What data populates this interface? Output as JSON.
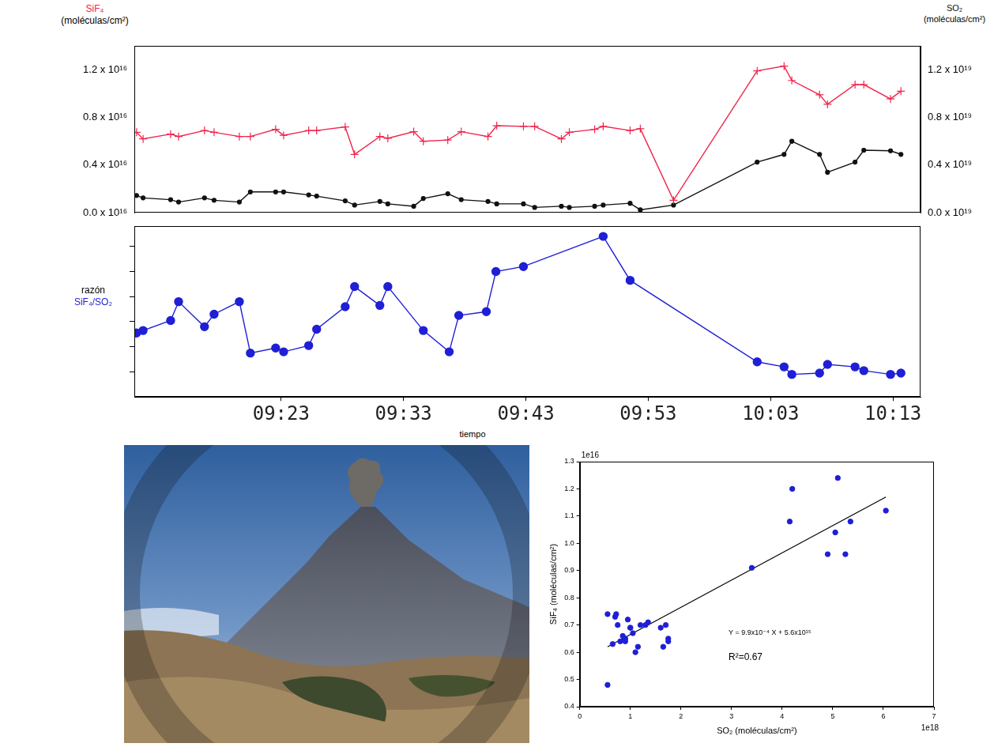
{
  "chart_data": [
    {
      "type": "line",
      "y_label": "(moléculas/cm²)",
      "y2_label": "(moléculas/cm²)",
      "x": [
        "09:11:11",
        "09:11:43",
        "09:13:58",
        "09:14:37",
        "09:16:44",
        "09:17:31",
        "09:19:35",
        "09:20:29",
        "09:22:33",
        "09:23:12",
        "09:25:15",
        "09:25:54",
        "09:28:14",
        "09:29:00",
        "09:31:04",
        "09:31:43",
        "09:33:50",
        "09:34:37",
        "09:36:37",
        "09:37:43",
        "09:39:54",
        "09:40:37",
        "09:42:48",
        "09:43:43",
        "09:45:54",
        "09:46:33",
        "09:48:37",
        "09:49:19",
        "09:51:31",
        "09:52:21",
        "09:55:04",
        "10:01:54",
        "10:04:06",
        "10:04:44",
        "10:07:00",
        "10:07:39",
        "10:09:54",
        "10:10:37",
        "10:12:48",
        "10:13:39"
      ],
      "xlim": [
        "09:11:00",
        "10:15:15"
      ],
      "ylim": [
        0,
        1.4e+16
      ],
      "yticks": [
        {
          "value": 0,
          "label": "0.0 x 10¹⁶"
        },
        {
          "value": 4000000000000000.0,
          "label": "0.4 x 10¹⁶"
        },
        {
          "value": 8000000000000000.0,
          "label": "0.8 x 10¹⁶"
        },
        {
          "value": 1.2e+16,
          "label": "1.2 x 10¹⁶"
        }
      ],
      "y2lim": [
        0,
        1.4e+19
      ],
      "y2ticks": [
        {
          "value": 0,
          "label": "0.0 x 10¹⁹"
        },
        {
          "value": 4e+18,
          "label": "0.4 x 10¹⁹"
        },
        {
          "value": 8e+18,
          "label": "0.8 x 10¹⁹"
        },
        {
          "value": 1.2e+19,
          "label": "1.2 x 10¹⁹"
        }
      ],
      "grid": false,
      "series": [
        {
          "name": "SiF₄",
          "color": "#f0244c",
          "marker": "plus",
          "values": [
            6750000000000000.0,
            6200000000000000.0,
            6600000000000000.0,
            6400000000000000.0,
            6900000000000000.0,
            6750000000000000.0,
            6400000000000000.0,
            6400000000000000.0,
            7000000000000000.0,
            6500000000000000.0,
            6900000000000000.0,
            6900000000000000.0,
            7200000000000000.0,
            4900000000000000.0,
            6400000000000000.0,
            6250000000000000.0,
            6800000000000000.0,
            6000000000000000.0,
            6100000000000000.0,
            6800000000000000.0,
            6400000000000000.0,
            7300000000000000.0,
            7250000000000000.0,
            7250000000000000.0,
            6200000000000000.0,
            6750000000000000.0,
            7000000000000000.0,
            7250000000000000.0,
            6900000000000000.0,
            7050000000000000.0,
            1050000000000000.0,
            1.19e+16,
            1.23e+16,
            1.11e+16,
            9900000000000000.0,
            9100000000000000.0,
            1.075e+16,
            1.075e+16,
            9550000000000000.0,
            1.02e+16
          ]
        },
        {
          "name": "SO₂",
          "color": "#111111",
          "marker": "circle",
          "axis": "y2",
          "values": [
            1.45e+18,
            1.25e+18,
            1.1e+18,
            9e+17,
            1.25e+18,
            1.05e+18,
            9e+17,
            1.75e+18,
            1.75e+18,
            1.75e+18,
            1.5e+18,
            1.4e+18,
            1e+18,
            6.5e+17,
            9.5e+17,
            7.5e+17,
            5.5e+17,
            1.2e+18,
            1.6e+18,
            1.1e+18,
            9.5e+17,
            7.5e+17,
            7.5e+17,
            4.5e+17,
            5.5e+17,
            4.5e+17,
            5.5e+17,
            6.5e+17,
            8e+17,
            2.5e+17,
            6.5e+17,
            4.25e+18,
            4.9e+18,
            6e+18,
            4.9e+18,
            3.4e+18,
            4.25e+18,
            5.25e+18,
            5.2e+18,
            4.9e+18
          ]
        }
      ]
    },
    {
      "type": "line",
      "x_label": "tiempo",
      "y_label": "razón",
      "x": [
        "09:11:11",
        "09:11:43",
        "09:13:58",
        "09:14:37",
        "09:16:44",
        "09:17:31",
        "09:19:35",
        "09:20:29",
        "09:22:33",
        "09:23:12",
        "09:25:15",
        "09:25:54",
        "09:28:14",
        "09:29:00",
        "09:31:04",
        "09:31:43",
        "09:34:37",
        "09:36:44",
        "09:37:31",
        "09:39:46",
        "09:40:33",
        "09:42:48",
        "09:49:19",
        "09:51:31",
        "10:01:54",
        "10:04:06",
        "10:04:44",
        "10:07:00",
        "10:07:39",
        "10:09:54",
        "10:10:37",
        "10:12:48",
        "10:13:39"
      ],
      "xlim": [
        "09:11:00",
        "10:15:15"
      ],
      "xticks": [
        "09:23",
        "09:33",
        "09:43",
        "09:53",
        "10:03",
        "10:13"
      ],
      "ylim": [
        0,
        0.0136
      ],
      "yticks": [
        0.002,
        0.004,
        0.006,
        0.008,
        0.01,
        0.012
      ],
      "tick_labels": "x",
      "grid": false,
      "series": [
        {
          "name": "SiF₄/SO₂",
          "color": "#1f1fd6",
          "marker": "circle",
          "values": [
            0.0051,
            0.0053,
            0.0061,
            0.0076,
            0.0056,
            0.0066,
            0.0076,
            0.0035,
            0.0039,
            0.0036,
            0.0041,
            0.0054,
            0.0072,
            0.0088,
            0.0073,
            0.0088,
            0.0053,
            0.0036,
            0.0065,
            0.0068,
            0.01,
            0.0104,
            0.0128,
            0.0093,
            0.0028,
            0.0024,
            0.0018,
            0.0019,
            0.0026,
            0.0024,
            0.0021,
            0.0018,
            0.0019
          ]
        }
      ]
    },
    {
      "type": "scatter",
      "x_label": "SO₂ (moléculas/cm²)",
      "y_label": "SiF₄ (moléculas/cm²)",
      "x_offset_label": "1e18",
      "y_offset_label": "1e16",
      "annotations": [
        "Y = 9.9x10⁻⁴ X + 5.6x10¹⁵",
        "R²=0.67"
      ],
      "xlim": [
        0,
        7
      ],
      "xticks": [
        0,
        1,
        2,
        3,
        4,
        5,
        6,
        7
      ],
      "ylim": [
        0.4,
        1.3
      ],
      "yticks": [
        0.4,
        0.5,
        0.6,
        0.7,
        0.8,
        0.9,
        {
          "value": 1,
          "label": "1.0"
        },
        1.1,
        1.2,
        1.3
      ],
      "grid": false,
      "color": "#1f1fd6",
      "marker": "circle",
      "x": [
        0.55,
        0.7,
        0.72,
        0.75,
        0.55,
        0.65,
        0.8,
        0.85,
        0.9,
        0.95,
        1.0,
        1.05,
        1.1,
        1.15,
        1.2,
        1.3,
        1.35,
        1.6,
        1.65,
        1.7,
        1.75,
        1.75,
        1.0,
        0.9,
        3.4,
        4.15,
        4.2,
        4.9,
        5.05,
        5.1,
        5.25,
        5.35,
        6.05
      ],
      "values": [
        0.74,
        0.73,
        0.74,
        0.7,
        0.48,
        0.63,
        0.64,
        0.66,
        0.65,
        0.72,
        0.69,
        0.67,
        0.6,
        0.62,
        0.7,
        0.7,
        0.71,
        0.69,
        0.62,
        0.7,
        0.65,
        0.64,
        0.69,
        0.64,
        0.91,
        1.08,
        1.2,
        0.96,
        1.04,
        1.24,
        0.96,
        1.08,
        1.12
      ],
      "fit_line": {
        "x": [
          0.55,
          6.05
        ],
        "values": [
          0.62,
          1.17
        ],
        "color": "#000000",
        "line_style": "solid"
      }
    }
  ]
}
